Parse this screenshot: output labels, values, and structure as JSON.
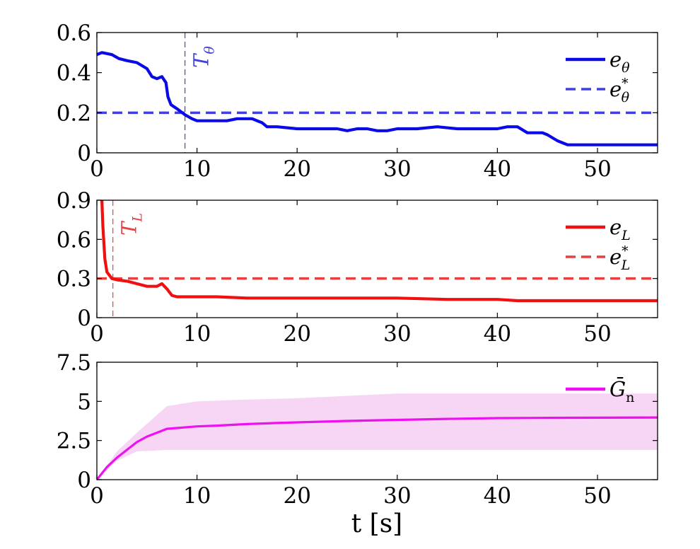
{
  "xlabel": "t [s]",
  "chart_data": [
    {
      "type": "line",
      "xlim": [
        0,
        56
      ],
      "ylim": [
        0,
        0.6
      ],
      "xticks": [
        "0",
        "10",
        "20",
        "30",
        "40",
        "50"
      ],
      "yticks": [
        "0",
        "0.2",
        "0.4",
        "0.6"
      ],
      "grid": false,
      "legend_position": "top-right",
      "threshold": {
        "label": "e*θ",
        "value": 0.2,
        "style": "dashed",
        "color": "#4040e0"
      },
      "vline": {
        "label": "Tθ",
        "x": 8.8,
        "color": "#4040e0"
      },
      "series": [
        {
          "name": "eθ",
          "color": "#0a0ae6",
          "x": [
            0,
            0.5,
            1.5,
            2.2,
            3,
            4,
            5,
            5.5,
            6,
            6.5,
            6.9,
            7.1,
            7.4,
            8,
            8.8,
            9.5,
            10,
            11,
            12,
            13,
            14,
            14.5,
            15.5,
            16,
            16.5,
            17,
            18,
            20,
            22,
            24,
            25,
            26,
            27,
            28,
            29,
            30,
            32,
            34,
            36,
            38,
            40,
            41,
            42,
            43,
            44.5,
            45,
            46,
            47,
            48,
            50,
            56
          ],
          "values": [
            0.49,
            0.5,
            0.49,
            0.47,
            0.46,
            0.45,
            0.42,
            0.38,
            0.37,
            0.38,
            0.35,
            0.28,
            0.24,
            0.22,
            0.19,
            0.17,
            0.16,
            0.16,
            0.16,
            0.16,
            0.17,
            0.17,
            0.17,
            0.16,
            0.15,
            0.13,
            0.13,
            0.12,
            0.12,
            0.12,
            0.11,
            0.12,
            0.12,
            0.11,
            0.11,
            0.12,
            0.12,
            0.13,
            0.12,
            0.12,
            0.12,
            0.13,
            0.13,
            0.1,
            0.1,
            0.09,
            0.06,
            0.04,
            0.04,
            0.04,
            0.04
          ]
        }
      ]
    },
    {
      "type": "line",
      "xlim": [
        0,
        56
      ],
      "ylim": [
        0,
        0.9
      ],
      "xticks": [
        "0",
        "10",
        "20",
        "30",
        "40",
        "50"
      ],
      "yticks": [
        "0",
        "0.3",
        "0.6",
        "0.9"
      ],
      "grid": false,
      "legend_position": "top-right",
      "threshold": {
        "label": "e*L",
        "value": 0.3,
        "style": "dashed",
        "color": "#e84040"
      },
      "vline": {
        "label": "TL",
        "x": 1.6,
        "color": "#e84040"
      },
      "series": [
        {
          "name": "eL",
          "color": "#f01010",
          "x": [
            0.5,
            0.6,
            0.8,
            1.0,
            1.5,
            2,
            3,
            4,
            5,
            6,
            6.5,
            7,
            7.5,
            8,
            10,
            12,
            15,
            20,
            25,
            30,
            35,
            40,
            42,
            50,
            56
          ],
          "values": [
            0.9,
            0.7,
            0.45,
            0.35,
            0.3,
            0.29,
            0.28,
            0.26,
            0.24,
            0.24,
            0.26,
            0.22,
            0.17,
            0.16,
            0.16,
            0.16,
            0.15,
            0.15,
            0.15,
            0.15,
            0.14,
            0.14,
            0.13,
            0.13,
            0.13
          ]
        }
      ]
    },
    {
      "type": "area",
      "xlim": [
        0,
        56
      ],
      "ylim": [
        0,
        7.5
      ],
      "xticks": [
        "0",
        "10",
        "20",
        "30",
        "40",
        "50"
      ],
      "yticks": [
        "0",
        "2.5",
        "5",
        "7.5"
      ],
      "grid": false,
      "legend_position": "top-right",
      "band": {
        "color": "#f7d6f5",
        "x": [
          0,
          2,
          4,
          7,
          10,
          14,
          20,
          30,
          56
        ],
        "upper": [
          0,
          1.8,
          3.0,
          4.7,
          5.0,
          5.1,
          5.2,
          5.5,
          5.5
        ],
        "lower": [
          0,
          1.2,
          1.8,
          1.9,
          1.9,
          1.9,
          1.9,
          1.9,
          1.9
        ]
      },
      "series": [
        {
          "name": "Ḡn",
          "color": "#ee10ee",
          "x": [
            0,
            1,
            2,
            3,
            4,
            5,
            6,
            7,
            8,
            10,
            12,
            15,
            18,
            20,
            25,
            30,
            35,
            40,
            45,
            50,
            56
          ],
          "values": [
            0,
            0.8,
            1.4,
            1.9,
            2.4,
            2.75,
            3.0,
            3.25,
            3.3,
            3.4,
            3.45,
            3.55,
            3.62,
            3.66,
            3.75,
            3.82,
            3.88,
            3.93,
            3.95,
            3.96,
            3.97
          ]
        }
      ]
    }
  ]
}
